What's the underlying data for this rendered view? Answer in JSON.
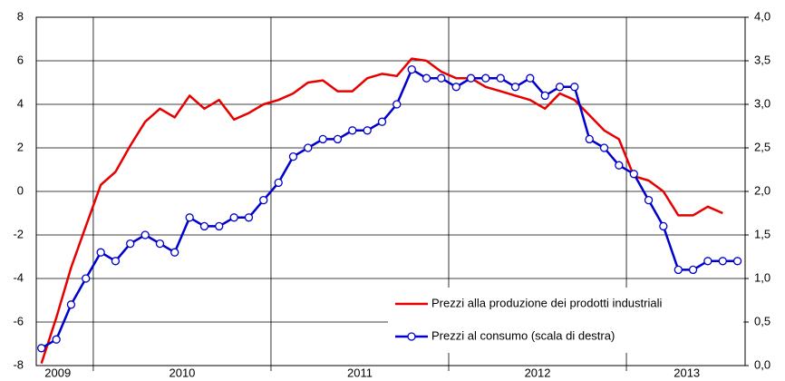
{
  "chart_data": {
    "type": "line",
    "x": [
      2009.708,
      2009.792,
      2009.875,
      2009.958,
      2010.042,
      2010.125,
      2010.208,
      2010.292,
      2010.375,
      2010.458,
      2010.542,
      2010.625,
      2010.708,
      2010.792,
      2010.875,
      2010.958,
      2011.042,
      2011.125,
      2011.208,
      2011.292,
      2011.375,
      2011.458,
      2011.542,
      2011.625,
      2011.708,
      2011.792,
      2011.875,
      2011.958,
      2012.042,
      2012.125,
      2012.208,
      2012.292,
      2012.375,
      2012.458,
      2012.542,
      2012.625,
      2012.708,
      2012.792,
      2012.875,
      2012.958,
      2013.042,
      2013.125,
      2013.208,
      2013.292,
      2013.375,
      2013.458,
      2013.542,
      2013.625
    ],
    "series": [
      {
        "name": "Prezzi alla produzione dei prodotti industriali",
        "color": "#e60000",
        "axis": "y",
        "values": [
          -7.9,
          -5.8,
          -3.5,
          -1.6,
          0.3,
          0.9,
          2.1,
          3.2,
          3.8,
          3.4,
          4.4,
          3.8,
          4.2,
          3.3,
          3.6,
          4.0,
          4.2,
          4.5,
          5.0,
          5.1,
          4.6,
          4.6,
          5.2,
          5.4,
          5.3,
          6.1,
          6.0,
          5.5,
          5.2,
          5.2,
          4.8,
          4.6,
          4.4,
          4.2,
          3.8,
          4.5,
          4.2,
          3.5,
          2.8,
          2.4,
          0.7,
          0.5,
          0.0,
          -1.1,
          -1.1,
          -0.7,
          -1.0,
          null
        ]
      },
      {
        "name": "Prezzi al consumo (scala di destra)",
        "color": "#0000cc",
        "axis": "y2",
        "markers": true,
        "values": [
          0.2,
          0.3,
          0.7,
          1.0,
          1.3,
          1.2,
          1.4,
          1.5,
          1.4,
          1.3,
          1.7,
          1.6,
          1.6,
          1.7,
          1.7,
          1.9,
          2.1,
          2.4,
          2.5,
          2.6,
          2.6,
          2.7,
          2.7,
          2.8,
          3.0,
          3.4,
          3.3,
          3.3,
          3.2,
          3.3,
          3.3,
          3.3,
          3.2,
          3.3,
          3.1,
          3.2,
          3.2,
          2.6,
          2.5,
          2.3,
          2.2,
          1.9,
          1.6,
          1.1,
          1.1,
          1.2,
          1.2,
          1.2
        ]
      }
    ],
    "xlim": [
      2009.679,
      2013.668
    ],
    "xticks": [
      {
        "value": 2009.8,
        "label": "2009"
      },
      {
        "value": 2010.5,
        "label": "2010"
      },
      {
        "value": 2011.5,
        "label": "2011"
      },
      {
        "value": 2012.5,
        "label": "2012"
      },
      {
        "value": 2013.34,
        "label": "2013"
      }
    ],
    "x_grid": [
      2010,
      2011,
      2012,
      2013
    ],
    "ylim": [
      -8,
      8
    ],
    "yticks": [
      -8,
      -6,
      -4,
      -2,
      0,
      2,
      4,
      6,
      8
    ],
    "y2lim": [
      0,
      4
    ],
    "y2ticks": [
      {
        "value": 0,
        "label": "0,0"
      },
      {
        "value": 0.5,
        "label": "0,5"
      },
      {
        "value": 1,
        "label": "1,0"
      },
      {
        "value": 1.5,
        "label": "1,5"
      },
      {
        "value": 2,
        "label": "2,0"
      },
      {
        "value": 2.5,
        "label": "2,5"
      },
      {
        "value": 3,
        "label": "3,0"
      },
      {
        "value": 3.5,
        "label": "3,5"
      },
      {
        "value": 4,
        "label": "4,0"
      }
    ],
    "grid": true,
    "legend": "lower right"
  }
}
